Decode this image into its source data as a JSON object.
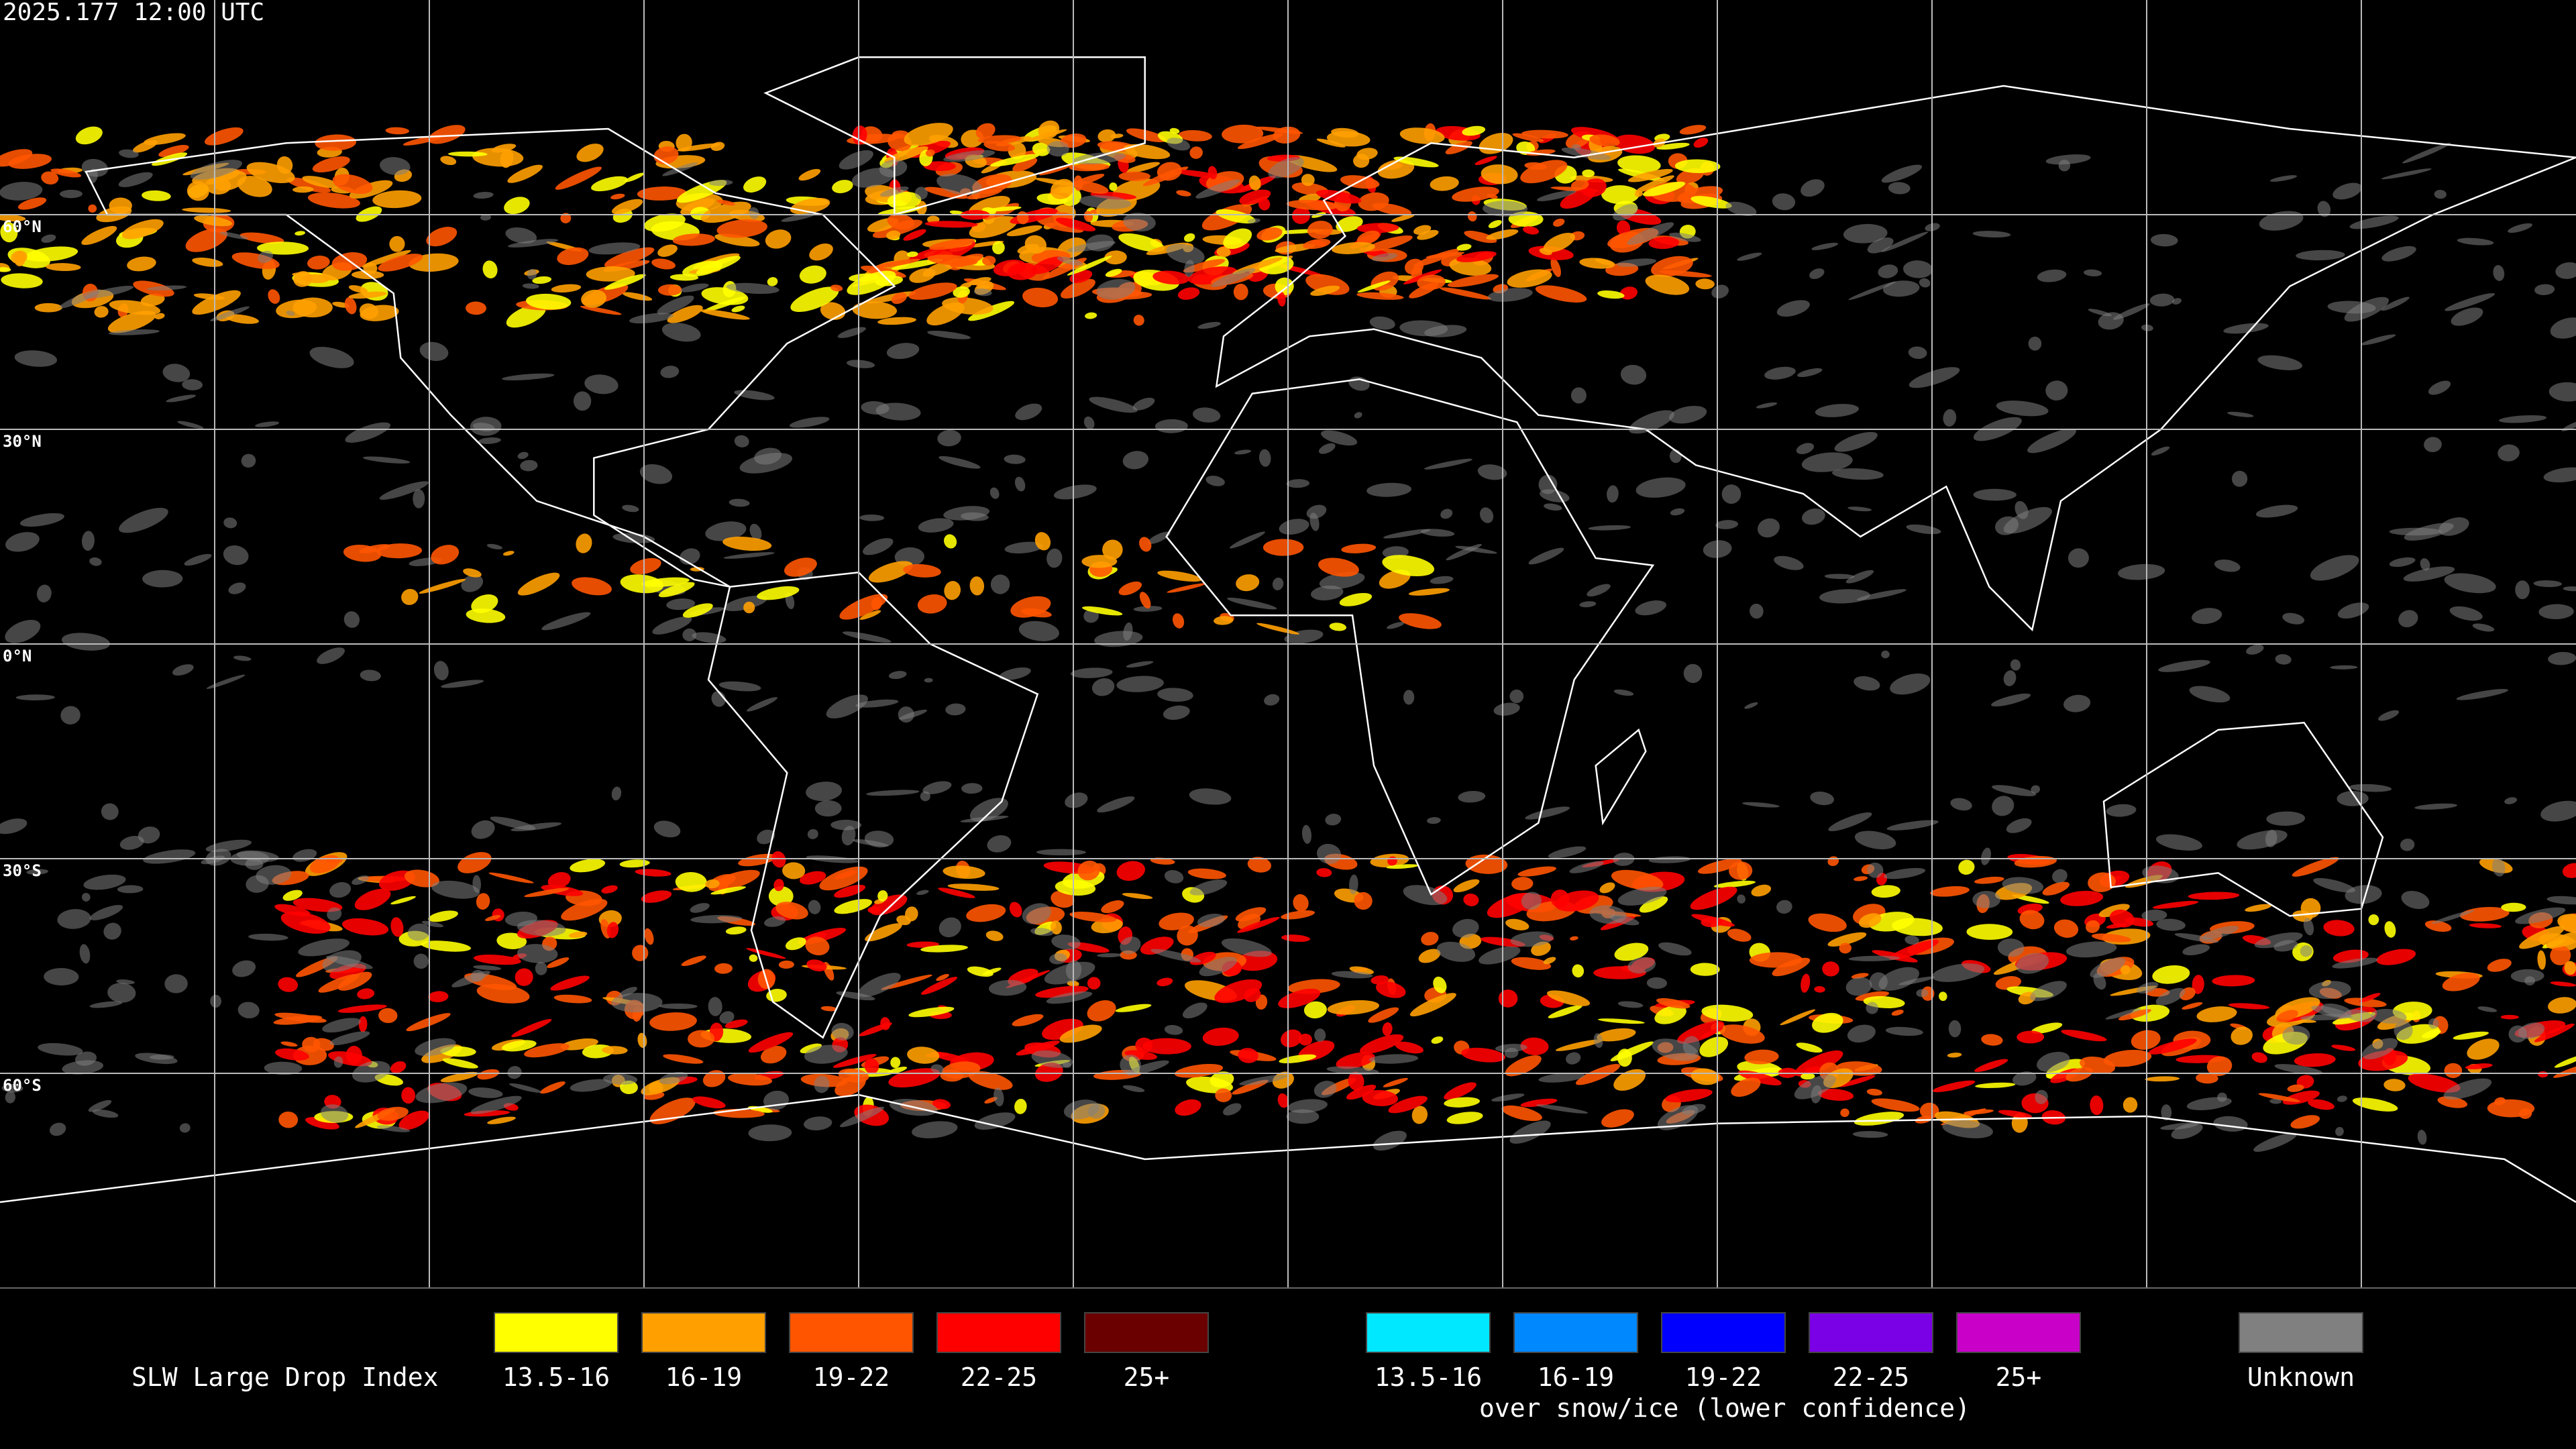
{
  "header": {
    "timestamp": "2025.177 12:00 UTC"
  },
  "map": {
    "lat_labels": [
      "60°N",
      "30°N",
      "0°N",
      "30°S",
      "60°S"
    ]
  },
  "legend": {
    "title": "SLW Large Drop Index",
    "groups": [
      {
        "items": [
          {
            "label": "13.5-16",
            "color": "#ffff00"
          },
          {
            "label": "16-19",
            "color": "#ffa000"
          },
          {
            "label": "19-22",
            "color": "#ff5500"
          },
          {
            "label": "22-25",
            "color": "#ff0000"
          },
          {
            "label": "25+",
            "color": "#6a0000"
          }
        ]
      },
      {
        "items": [
          {
            "label": "13.5-16",
            "color": "#00e8ff"
          },
          {
            "label": "16-19",
            "color": "#0088ff"
          },
          {
            "label": "19-22",
            "color": "#0000ff"
          },
          {
            "label": "22-25",
            "color": "#7a00e6"
          },
          {
            "label": "25+",
            "color": "#c800c8"
          }
        ],
        "caption": "over snow/ice (lower confidence)"
      },
      {
        "items": [
          {
            "label": "Unknown",
            "color": "#808080"
          }
        ]
      }
    ]
  }
}
